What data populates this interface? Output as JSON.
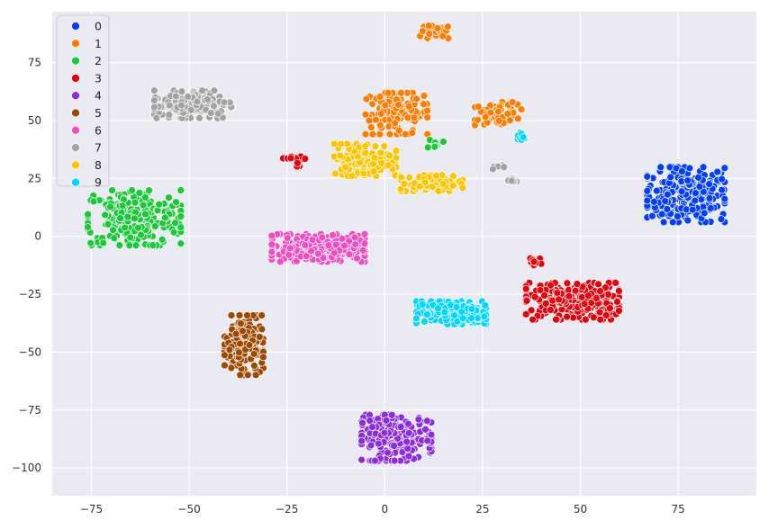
{
  "chart_data": {
    "type": "scatter",
    "title": "",
    "xlabel": "",
    "ylabel": "",
    "xlim": [
      -85,
      95
    ],
    "ylim": [
      -112,
      97
    ],
    "x_ticks": [
      -75,
      -50,
      -25,
      0,
      25,
      50,
      75
    ],
    "y_ticks": [
      75,
      50,
      25,
      0,
      -25,
      -50,
      -75,
      -100
    ],
    "grid": true,
    "background": "#eaeaf2",
    "legend_position": "top-left",
    "series": [
      {
        "name": "0",
        "color": "#023eff",
        "clusters": [
          {
            "cx": 77,
            "cy": 18,
            "sx": 10,
            "sy": 12,
            "n": 260
          }
        ]
      },
      {
        "name": "1",
        "color": "#ff7c00",
        "clusters": [
          {
            "cx": 3,
            "cy": 53,
            "sx": 8,
            "sy": 9,
            "n": 140
          },
          {
            "cx": 13,
            "cy": 88,
            "sx": 4,
            "sy": 3,
            "n": 22
          },
          {
            "cx": 29,
            "cy": 53,
            "sx": 6,
            "sy": 5,
            "n": 55
          }
        ]
      },
      {
        "name": "2",
        "color": "#1ac938",
        "clusters": [
          {
            "cx": -64,
            "cy": 8,
            "sx": 12,
            "sy": 12,
            "n": 230
          },
          {
            "cx": 13,
            "cy": 40,
            "sx": 2,
            "sy": 2,
            "n": 8
          }
        ]
      },
      {
        "name": "3",
        "color": "#e8000b",
        "clusters": [
          {
            "cx": 48,
            "cy": -28,
            "sx": 12,
            "sy": 8,
            "n": 240
          },
          {
            "cx": -23,
            "cy": 33,
            "sx": 3,
            "sy": 3,
            "n": 12
          },
          {
            "cx": 38,
            "cy": -11,
            "sx": 2,
            "sy": 1.5,
            "n": 8
          }
        ]
      },
      {
        "name": "4",
        "color": "#8b2be2",
        "clusters": [
          {
            "cx": 3,
            "cy": -87,
            "sx": 9,
            "sy": 10,
            "n": 200
          }
        ]
      },
      {
        "name": "5",
        "color": "#9f4800",
        "clusters": [
          {
            "cx": -36,
            "cy": -47,
            "sx": 5,
            "sy": 13,
            "n": 170
          }
        ]
      },
      {
        "name": "6",
        "color": "#f14cc1",
        "clusters": [
          {
            "cx": -17,
            "cy": -5,
            "sx": 12,
            "sy": 6,
            "n": 240
          }
        ]
      },
      {
        "name": "7",
        "color": "#a3a3a3",
        "clusters": [
          {
            "cx": -49,
            "cy": 57,
            "sx": 10,
            "sy": 6,
            "n": 180
          },
          {
            "cx": 33,
            "cy": 24,
            "sx": 2,
            "sy": 1,
            "n": 8
          },
          {
            "cx": 29,
            "cy": 30,
            "sx": 1.5,
            "sy": 1,
            "n": 6
          }
        ]
      },
      {
        "name": "8",
        "color": "#ffc400",
        "clusters": [
          {
            "cx": -5,
            "cy": 33,
            "sx": 8,
            "sy": 7,
            "n": 150
          },
          {
            "cx": 12,
            "cy": 23,
            "sx": 8,
            "sy": 3.5,
            "n": 80
          }
        ]
      },
      {
        "name": "9",
        "color": "#00d7ff",
        "clusters": [
          {
            "cx": 17,
            "cy": -33,
            "sx": 9,
            "sy": 5,
            "n": 210
          },
          {
            "cx": 35,
            "cy": 43,
            "sx": 2,
            "sy": 2,
            "n": 12
          }
        ]
      }
    ]
  }
}
